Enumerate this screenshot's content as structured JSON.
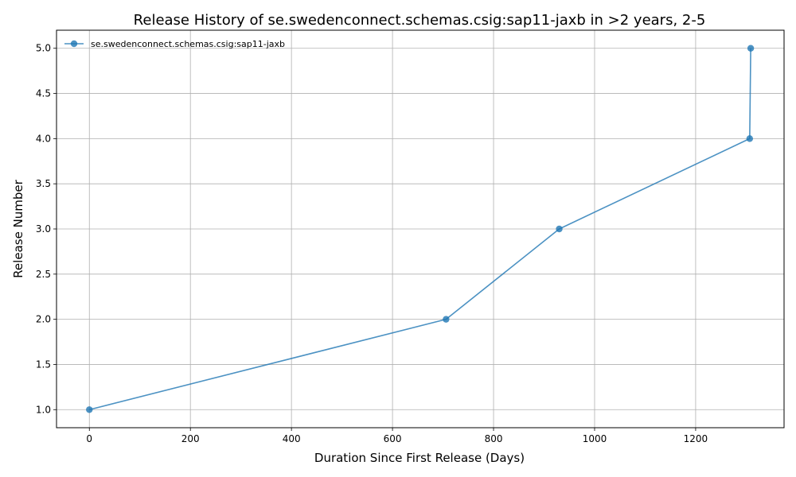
{
  "chart_data": {
    "type": "line",
    "title": "Release History of se.swedenconnect.schemas.csig:sap11-jaxb in >2 years, 2-5",
    "xlabel": "Duration Since First Release (Days)",
    "ylabel": "Release Number",
    "xlim": [
      -65,
      1375
    ],
    "ylim": [
      0.8,
      5.2
    ],
    "xticks": [
      0,
      200,
      400,
      600,
      800,
      1000,
      1200
    ],
    "yticks": [
      1.0,
      1.5,
      2.0,
      2.5,
      3.0,
      3.5,
      4.0,
      4.5,
      5.0
    ],
    "xtick_labels": [
      "0",
      "200",
      "400",
      "600",
      "800",
      "1000",
      "1200"
    ],
    "ytick_labels": [
      "1.0",
      "1.5",
      "2.0",
      "2.5",
      "3.0",
      "3.5",
      "4.0",
      "4.5",
      "5.0"
    ],
    "grid": true,
    "legend_position": "top-left",
    "series": [
      {
        "name": "se.swedenconnect.schemas.csig:sap11-jaxb",
        "color": "#1f77b4",
        "marker": "circle",
        "x": [
          0,
          706,
          930,
          1307,
          1309
        ],
        "y": [
          1,
          2,
          3,
          4,
          5
        ]
      }
    ]
  }
}
